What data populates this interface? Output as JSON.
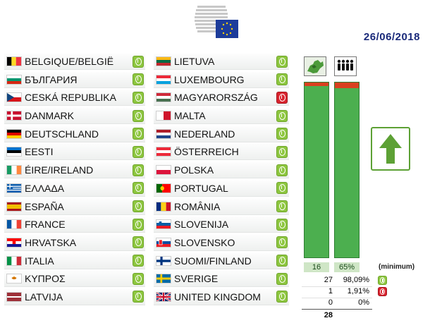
{
  "header": {
    "date": "26/06/2018"
  },
  "colors": {
    "yes": "#8dc63f",
    "no": "#d9232e",
    "abstain": "#f2c318",
    "bar": "#4caf4f",
    "date": "#1a2a7a"
  },
  "left_countries": [
    {
      "name": "BELGIQUE/BELGIË",
      "flag": "belgium-flag",
      "vote": "yes"
    },
    {
      "name": "БЪЛГАРИЯ",
      "flag": "bulgaria-flag",
      "vote": "yes"
    },
    {
      "name": "CESKÁ REPUBLIKA",
      "flag": "czech-flag",
      "vote": "yes"
    },
    {
      "name": "DANMARK",
      "flag": "denmark-flag",
      "vote": "yes"
    },
    {
      "name": "DEUTSCHLAND",
      "flag": "germany-flag",
      "vote": "yes"
    },
    {
      "name": "EESTI",
      "flag": "estonia-flag",
      "vote": "yes"
    },
    {
      "name": "ÉIRE/IRELAND",
      "flag": "ireland-flag",
      "vote": "yes"
    },
    {
      "name": "ΕΛΛΑΔΑ",
      "flag": "greece-flag",
      "vote": "yes"
    },
    {
      "name": "ESPAÑA",
      "flag": "spain-flag",
      "vote": "yes"
    },
    {
      "name": "FRANCE",
      "flag": "france-flag",
      "vote": "yes"
    },
    {
      "name": "HRVATSKA",
      "flag": "croatia-flag",
      "vote": "yes"
    },
    {
      "name": "ITALIA",
      "flag": "italy-flag",
      "vote": "yes"
    },
    {
      "name": "ΚΥΠΡΟΣ",
      "flag": "cyprus-flag",
      "vote": "yes"
    },
    {
      "name": "LATVIJA",
      "flag": "latvia-flag",
      "vote": "yes"
    }
  ],
  "right_countries": [
    {
      "name": "LIETUVA",
      "flag": "lithuania-flag",
      "vote": "yes"
    },
    {
      "name": "LUXEMBOURG",
      "flag": "luxembourg-flag",
      "vote": "yes"
    },
    {
      "name": "MAGYARORSZÁG",
      "flag": "hungary-flag",
      "vote": "no"
    },
    {
      "name": "MALTA",
      "flag": "malta-flag",
      "vote": "yes"
    },
    {
      "name": "NEDERLAND",
      "flag": "netherlands-flag",
      "vote": "yes"
    },
    {
      "name": "ÖSTERREICH",
      "flag": "austria-flag",
      "vote": "yes"
    },
    {
      "name": "POLSKA",
      "flag": "poland-flag",
      "vote": "yes"
    },
    {
      "name": "PORTUGAL",
      "flag": "portugal-flag",
      "vote": "yes"
    },
    {
      "name": "ROMÂNIA",
      "flag": "romania-flag",
      "vote": "yes"
    },
    {
      "name": "SLOVENIJA",
      "flag": "slovenia-flag",
      "vote": "yes"
    },
    {
      "name": "SLOVENSKO",
      "flag": "slovakia-flag",
      "vote": "yes"
    },
    {
      "name": "SUOMI/FINLAND",
      "flag": "finland-flag",
      "vote": "yes"
    },
    {
      "name": "SVERIGE",
      "flag": "sweden-flag",
      "vote": "yes"
    },
    {
      "name": "UNITED KINGDOM",
      "flag": "uk-flag",
      "vote": "yes"
    }
  ],
  "thresholds": {
    "states_min": "16",
    "population_min": "65%",
    "minimum_label": "(minimum)",
    "states_bar_fraction": 0.98,
    "population_bar_fraction": 0.97
  },
  "totals": [
    {
      "count": "27",
      "percent": "98,09%",
      "type": "yes"
    },
    {
      "count": "1",
      "percent": "1,91%",
      "type": "no"
    },
    {
      "count": "0",
      "percent": "0%",
      "type": "abstain"
    }
  ],
  "total_sum": "28"
}
